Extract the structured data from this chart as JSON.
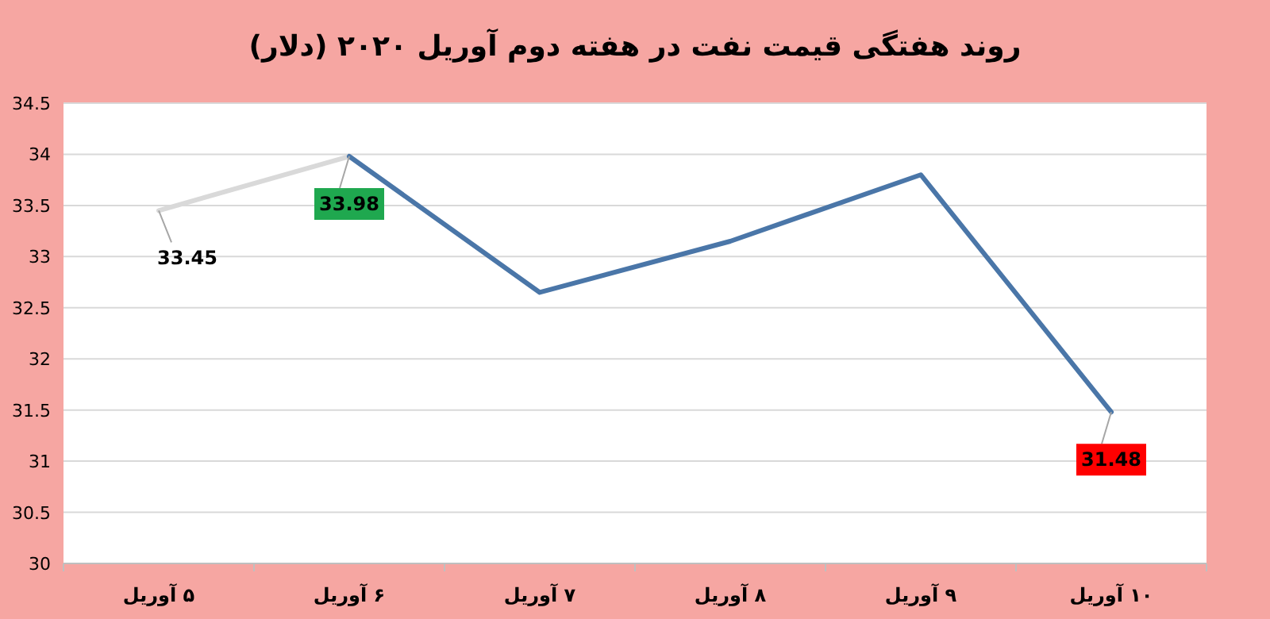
{
  "chart_data": {
    "type": "line",
    "title": "روند هفتگی قیمت نفت در هفته دوم آوریل ۲۰۲۰ (دلار)",
    "categories": [
      "۵ آوریل",
      "۶ آوریل",
      "۷ آوریل",
      "۸ آوریل",
      "۹ آوریل",
      "۱۰ آوریل"
    ],
    "series": [
      {
        "color": "#d9d9d9",
        "values": [
          33.45,
          33.98,
          null,
          null,
          null,
          null
        ],
        "value_labels": [
          "33.45",
          null,
          null,
          null,
          null,
          null
        ]
      },
      {
        "color": "#4a76a8",
        "values": [
          null,
          33.98,
          32.65,
          33.15,
          33.8,
          31.48
        ],
        "value_labels": [
          null,
          "33.98",
          null,
          null,
          null,
          "31.48"
        ]
      }
    ],
    "ylim": [
      30,
      34.5
    ],
    "yticks": [
      30,
      30.5,
      31,
      31.5,
      32,
      32.5,
      33,
      33.5,
      34,
      34.5
    ],
    "grid": "y"
  }
}
